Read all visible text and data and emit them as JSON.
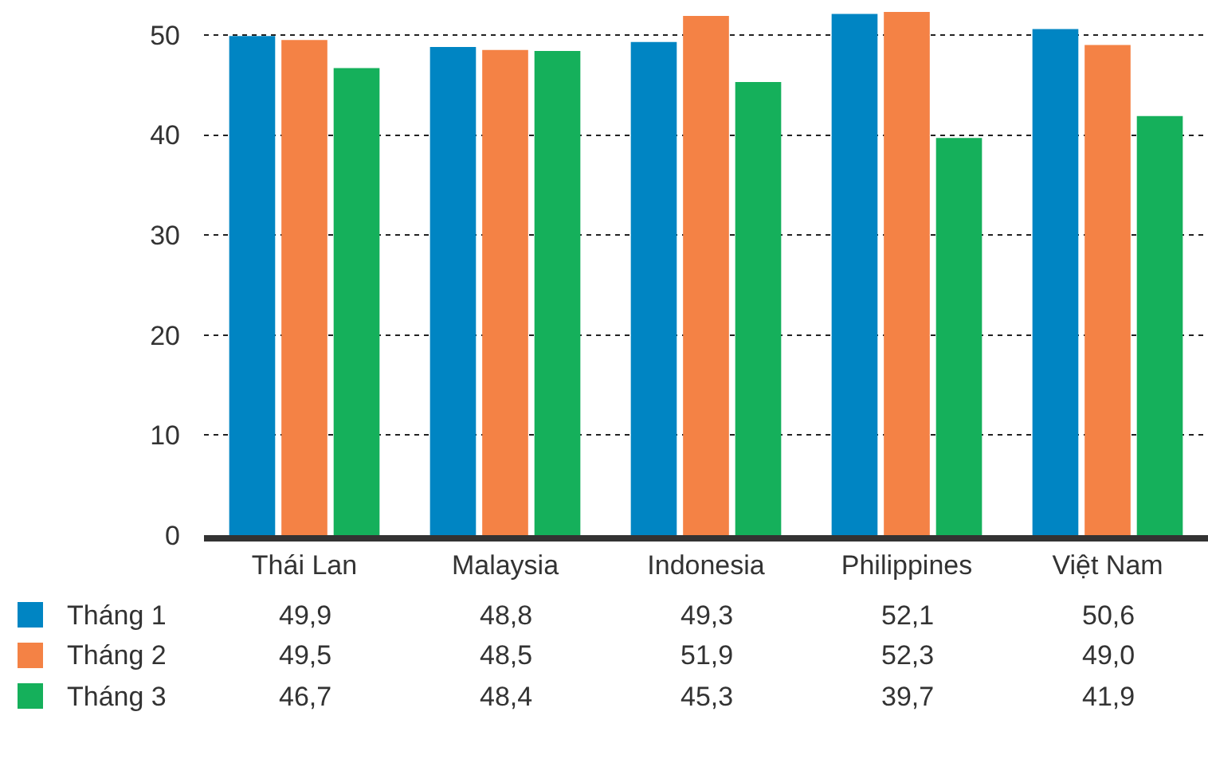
{
  "chart_data": {
    "type": "bar",
    "categories": [
      "Thái Lan",
      "Malaysia",
      "Indonesia",
      "Philippines",
      "Việt Nam"
    ],
    "series": [
      {
        "name": "Tháng 1",
        "color": "#0085c3",
        "values": [
          49.9,
          48.8,
          49.3,
          52.1,
          50.6
        ],
        "value_labels": [
          "49,9",
          "48,8",
          "49,3",
          "52,1",
          "50,6"
        ]
      },
      {
        "name": "Tháng 2",
        "color": "#f48245",
        "values": [
          49.5,
          48.5,
          51.9,
          52.3,
          49.0
        ],
        "value_labels": [
          "49,5",
          "48,5",
          "51,9",
          "52,3",
          "49,0"
        ]
      },
      {
        "name": "Tháng 3",
        "color": "#15b05b",
        "values": [
          46.7,
          48.4,
          45.3,
          39.7,
          41.9
        ],
        "value_labels": [
          "46,7",
          "48,4",
          "45,3",
          "39,7",
          "41,9"
        ]
      }
    ],
    "ylim": [
      0,
      53.5
    ],
    "yticks": [
      0,
      10,
      20,
      30,
      40,
      50
    ],
    "grid": "y",
    "legend": "bottom left"
  }
}
